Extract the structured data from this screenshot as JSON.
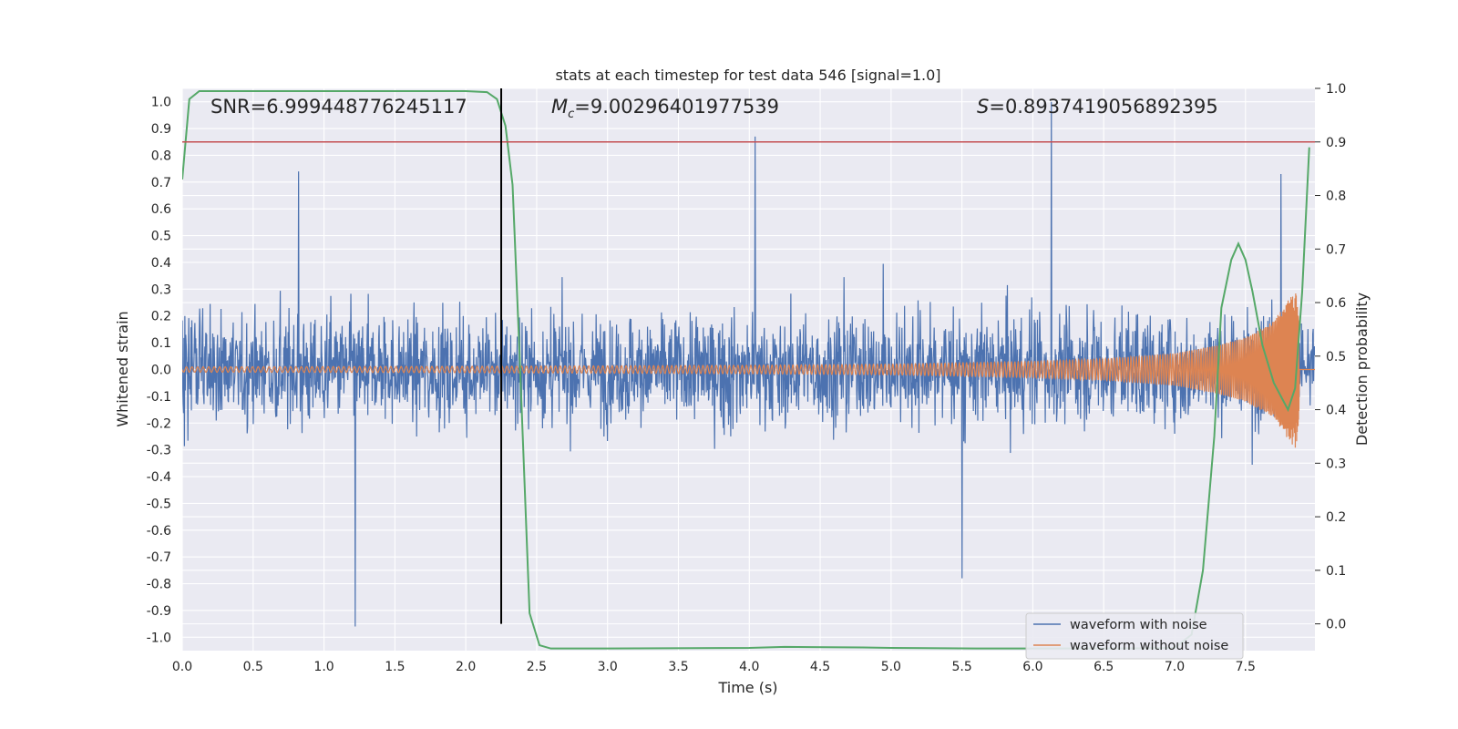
{
  "chart_data": {
    "type": "line",
    "title": "stats at each timestep for test data 546 [signal=1.0]",
    "xlabel": "Time (s)",
    "ylabel": "Whitened strain",
    "y2label": "Detection probability",
    "xlim": [
      0,
      7.99
    ],
    "ylim": [
      -1.05,
      1.05
    ],
    "y2lim": [
      -0.05,
      1.0
    ],
    "xticks": [
      "0.0",
      "0.5",
      "1.0",
      "1.5",
      "2.0",
      "2.5",
      "3.0",
      "3.5",
      "4.0",
      "4.5",
      "5.0",
      "5.5",
      "6.0",
      "6.5",
      "7.0",
      "7.5"
    ],
    "yticks": [
      "1.0",
      "0.9",
      "0.8",
      "0.7",
      "0.6",
      "0.5",
      "0.4",
      "0.3",
      "0.2",
      "0.1",
      "0.0",
      "-0.1",
      "-0.2",
      "-0.3",
      "-0.4",
      "-0.5",
      "-0.6",
      "-0.7",
      "-0.8",
      "-0.9",
      "-1.0"
    ],
    "y2ticks": [
      "1.0",
      "0.9",
      "0.8",
      "0.7",
      "0.6",
      "0.5",
      "0.4",
      "0.3",
      "0.2",
      "0.1",
      "0.0"
    ],
    "grid": true,
    "legend_position": "lower-right",
    "annotations": {
      "snr": "SNR=6.999448776245117",
      "mc_symbol": "M",
      "mc_sub": "c",
      "mc_value": "=9.00296401977539",
      "s_symbol": "S",
      "s_value": "=0.8937419056892395"
    },
    "threshold": {
      "y2": 0.9,
      "color": "#c44e52"
    },
    "event_line": {
      "x": 2.25,
      "color": "#000000"
    },
    "series": [
      {
        "name": "waveform with noise",
        "color": "#4c72b0",
        "axis": "left",
        "envelope_amplitude": 0.42,
        "notable_peaks": [
          {
            "x": 0.82,
            "y": 0.74
          },
          {
            "x": 1.22,
            "y": -0.96
          },
          {
            "x": 4.04,
            "y": 0.87
          },
          {
            "x": 5.5,
            "y": -0.78
          },
          {
            "x": 6.13,
            "y": 1.0
          },
          {
            "x": 7.75,
            "y": 0.73
          }
        ]
      },
      {
        "name": "waveform without noise",
        "color": "#dd8452",
        "axis": "left",
        "x": [
          0,
          2.0,
          4.0,
          5.0,
          6.0,
          6.5,
          7.0,
          7.3,
          7.5,
          7.7,
          7.8,
          7.86,
          7.9
        ],
        "amplitude": [
          0.01,
          0.012,
          0.016,
          0.02,
          0.03,
          0.04,
          0.06,
          0.09,
          0.12,
          0.18,
          0.26,
          0.3,
          0.0
        ]
      },
      {
        "name": "",
        "color": "#55a868",
        "axis": "right",
        "x": [
          0,
          0.05,
          0.12,
          0.3,
          1.0,
          1.5,
          2.0,
          2.15,
          2.22,
          2.28,
          2.33,
          2.38,
          2.45,
          2.52,
          2.6,
          3.0,
          4.0,
          4.25,
          4.8,
          5.0,
          5.6,
          6.1,
          6.6,
          7.0,
          7.12,
          7.2,
          7.28,
          7.33,
          7.4,
          7.45,
          7.5,
          7.55,
          7.62,
          7.7,
          7.8,
          7.85,
          7.9,
          7.95
        ],
        "y": [
          0.83,
          0.98,
          0.995,
          0.995,
          0.995,
          0.995,
          0.995,
          0.993,
          0.98,
          0.93,
          0.82,
          0.5,
          0.02,
          -0.04,
          -0.046,
          -0.046,
          -0.045,
          -0.043,
          -0.044,
          -0.045,
          -0.046,
          -0.046,
          -0.046,
          -0.045,
          -0.02,
          0.1,
          0.35,
          0.59,
          0.68,
          0.71,
          0.68,
          0.62,
          0.52,
          0.45,
          0.4,
          0.44,
          0.62,
          0.89
        ]
      }
    ]
  }
}
